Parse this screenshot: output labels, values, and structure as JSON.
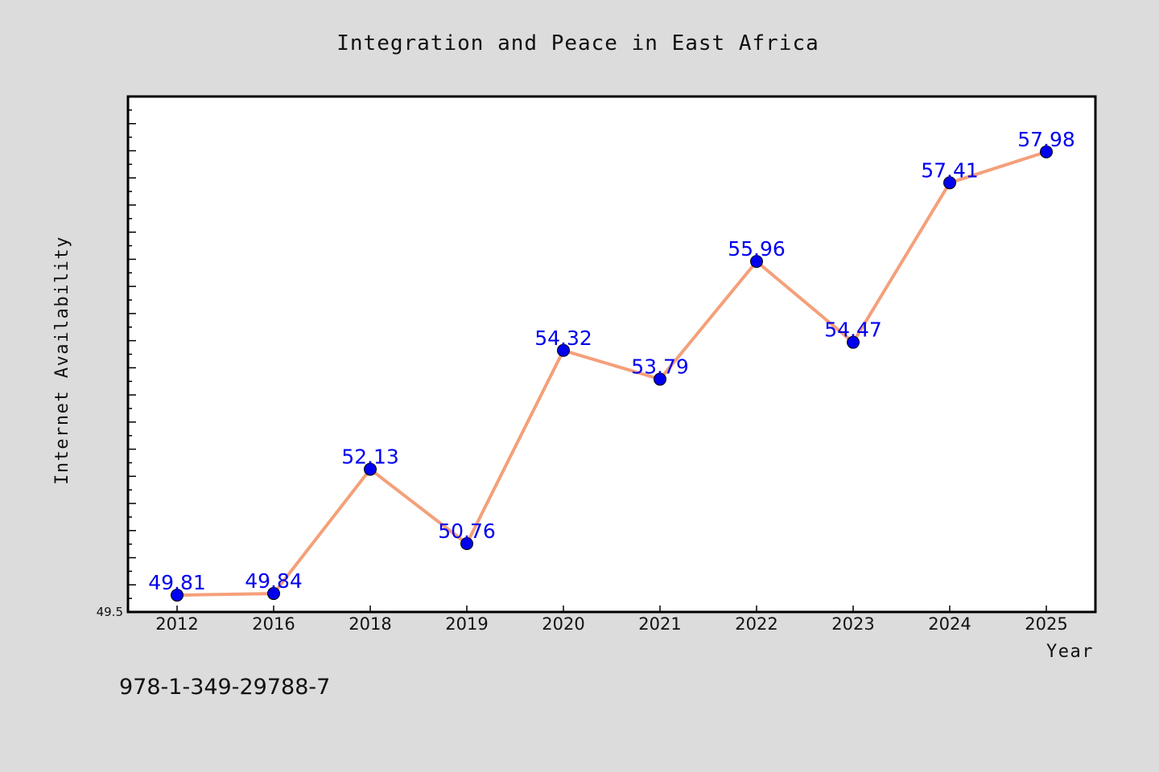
{
  "chart_data": {
    "type": "line",
    "title": "Integration and Peace in East Africa",
    "xlabel": "Year",
    "ylabel": "Internet Availability",
    "categories": [
      "2012",
      "2016",
      "2018",
      "2019",
      "2020",
      "2021",
      "2022",
      "2023",
      "2024",
      "2025"
    ],
    "series": [
      {
        "values": [
          49.81,
          49.84,
          52.13,
          50.76,
          54.32,
          53.79,
          55.96,
          54.47,
          57.41,
          57.98
        ],
        "data_labels": [
          "49.81",
          "49.84",
          "52.13",
          "50.76",
          "54.32",
          "53.79",
          "55.96",
          "54.47",
          "57.41",
          "57.98"
        ],
        "line_color": "#f4a07a",
        "marker_color": "#0000ee"
      }
    ],
    "ylim": [
      49.5,
      59.0
    ],
    "y_tick_labels": [
      "49.5"
    ],
    "grid": false,
    "legend": "none"
  },
  "annotation": "978-1-349-29788-7",
  "colors": {
    "background": "#dcdcdc",
    "plot_background": "#ffffff",
    "line": "#f4a07a",
    "marker": "#0000ee",
    "label": "#0000ee"
  }
}
